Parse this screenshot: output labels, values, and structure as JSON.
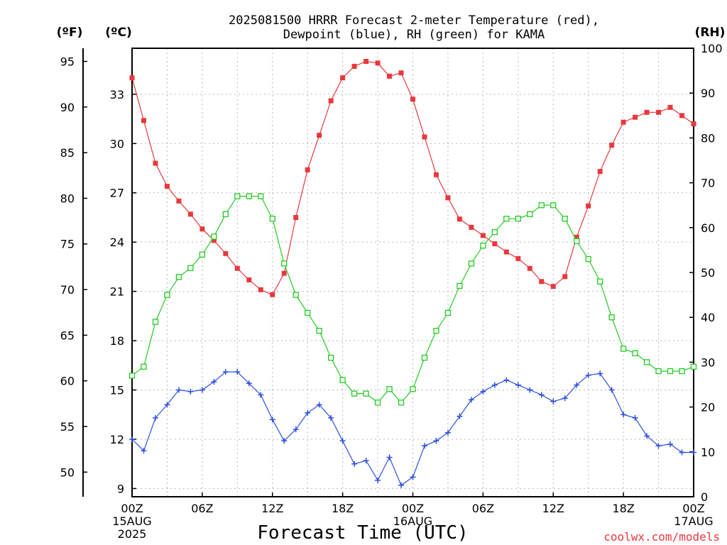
{
  "chart_data": {
    "type": "line",
    "title_line1": "2025081500 HRRR Forecast 2-meter Temperature (red),",
    "title_line2": "Dewpoint (blue), RH (green) for KAMA",
    "xlabel": "Forecast Time (UTC)",
    "credit": "coolwx.com/models",
    "units": {
      "f": "(ºF)",
      "c": "(ºC)",
      "rh": "(RH)"
    },
    "x_ticks": [
      {
        "hour": 0,
        "lines": [
          "00Z",
          "15AUG",
          "2025"
        ]
      },
      {
        "hour": 6,
        "lines": [
          "06Z"
        ]
      },
      {
        "hour": 12,
        "lines": [
          "12Z"
        ]
      },
      {
        "hour": 18,
        "lines": [
          "18Z"
        ]
      },
      {
        "hour": 24,
        "lines": [
          "00Z",
          "16AUG"
        ]
      },
      {
        "hour": 30,
        "lines": [
          "06Z"
        ]
      },
      {
        "hour": 36,
        "lines": [
          "12Z"
        ]
      },
      {
        "hour": 42,
        "lines": [
          "18Z"
        ]
      },
      {
        "hour": 48,
        "lines": [
          "00Z",
          "17AUG"
        ]
      }
    ],
    "xlim": [
      0,
      48
    ],
    "c_ticks": [
      9,
      12,
      15,
      18,
      21,
      24,
      27,
      30,
      33
    ],
    "f_ticks": [
      50,
      55,
      60,
      65,
      70,
      75,
      80,
      85,
      90,
      95
    ],
    "rh_ticks": [
      0,
      10,
      20,
      30,
      40,
      50,
      60,
      70,
      80,
      90,
      100
    ],
    "ylim_c": [
      8.5,
      35.8
    ],
    "ylim_rh": [
      0,
      100
    ],
    "grid": true,
    "series": [
      {
        "name": "2-meter Temperature",
        "color": "#e8383d",
        "marker": "filled-square",
        "axis": "c",
        "values": [
          34.0,
          31.4,
          28.8,
          27.4,
          26.5,
          25.7,
          24.8,
          24.1,
          23.3,
          22.4,
          21.7,
          21.1,
          20.8,
          22.1,
          25.5,
          28.4,
          30.5,
          32.6,
          34.0,
          34.7,
          35.0,
          34.9,
          34.1,
          34.3,
          32.7,
          30.4,
          28.1,
          26.7,
          25.4,
          24.9,
          24.4,
          23.9,
          23.4,
          23.0,
          22.4,
          21.6,
          21.3,
          21.9,
          24.3,
          26.2,
          28.3,
          29.9,
          31.3,
          31.6,
          31.9,
          31.9,
          32.2,
          31.7,
          31.2
        ]
      },
      {
        "name": "Dewpoint",
        "color": "#2d4fe0",
        "marker": "plus",
        "axis": "c",
        "values": [
          12.0,
          11.3,
          13.3,
          14.1,
          15.0,
          14.9,
          15.0,
          15.5,
          16.1,
          16.1,
          15.4,
          14.7,
          13.2,
          11.9,
          12.6,
          13.6,
          14.1,
          13.3,
          11.9,
          10.5,
          10.7,
          9.5,
          10.9,
          9.2,
          9.7,
          11.6,
          11.9,
          12.4,
          13.4,
          14.4,
          14.9,
          15.3,
          15.6,
          15.3,
          15.0,
          14.7,
          14.3,
          14.5,
          15.3,
          15.9,
          16.0,
          15.0,
          13.5,
          13.3,
          12.2,
          11.6,
          11.7,
          11.2,
          11.2
        ]
      },
      {
        "name": "RH",
        "color": "#22cc22",
        "marker": "open-square",
        "axis": "rh",
        "values": [
          27,
          29,
          39,
          45,
          49,
          51,
          54,
          58,
          63,
          67,
          67,
          67,
          62,
          52,
          45,
          41,
          37,
          31,
          26,
          23,
          23,
          21,
          24,
          21,
          24,
          31,
          37,
          41,
          47,
          52,
          56,
          59,
          62,
          62,
          63,
          65,
          65,
          62,
          57,
          53,
          48,
          40,
          33,
          32,
          30,
          28,
          28,
          28,
          29
        ]
      }
    ]
  }
}
